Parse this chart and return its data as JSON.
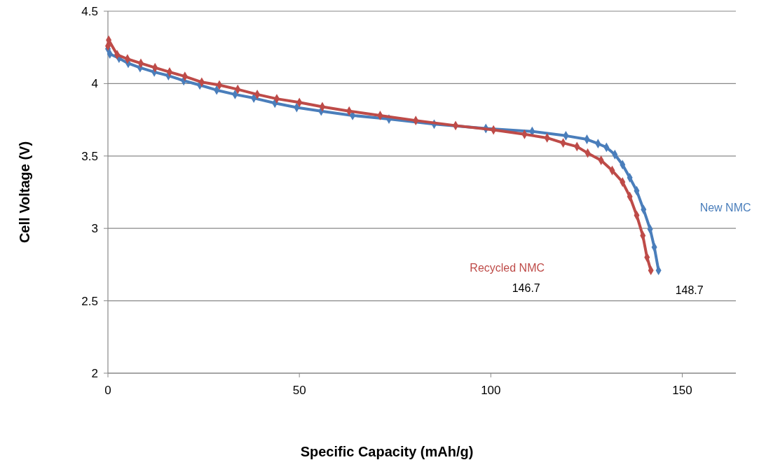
{
  "chart_data": {
    "type": "line",
    "xlabel": "Specific Capacity (mAh/g)",
    "ylabel": "Cell Voltage (V)",
    "xlim": [
      0,
      164
    ],
    "xticks": [
      0,
      50,
      100,
      150
    ],
    "ylim": [
      2,
      4.5
    ],
    "yticks": [
      2,
      2.5,
      3,
      3.5,
      4,
      4.5
    ],
    "grid": "y",
    "legend": false,
    "marker": "diamond",
    "line_style": "solid",
    "series": [
      {
        "name": "New NMC",
        "color": "#4a7ebb",
        "x": [
          0,
          0.5,
          2.9,
          5.3,
          8.4,
          12.1,
          15.8,
          19.8,
          24,
          28.4,
          33.2,
          38.1,
          43.6,
          49.3,
          55.7,
          63.9,
          73.4,
          85.2,
          98.7,
          110.8,
          119.6,
          125.1,
          128,
          130.2,
          132.4,
          134.4,
          136.3,
          138.1,
          139.9,
          141.6,
          142.7,
          143.8
        ],
        "values": [
          4.24,
          4.205,
          4.175,
          4.14,
          4.11,
          4.08,
          4.055,
          4.02,
          3.99,
          3.955,
          3.925,
          3.9,
          3.865,
          3.835,
          3.81,
          3.78,
          3.755,
          3.72,
          3.69,
          3.67,
          3.64,
          3.615,
          3.585,
          3.56,
          3.51,
          3.44,
          3.35,
          3.26,
          3.13,
          2.995,
          2.87,
          2.71
        ]
      },
      {
        "name": "Recycled NMC",
        "color": "#be4b48",
        "x": [
          0,
          0.2,
          2.4,
          5.1,
          8.6,
          12.3,
          16.1,
          20.1,
          24.5,
          29.1,
          33.9,
          39,
          44.1,
          50,
          56,
          63,
          71.1,
          80.4,
          90.8,
          100.7,
          108.8,
          114.7,
          118.9,
          122.5,
          125.3,
          128.8,
          131.7,
          134.4,
          136.3,
          138.1,
          139.7,
          140.8,
          141.8
        ],
        "values": [
          4.26,
          4.3,
          4.2,
          4.17,
          4.14,
          4.11,
          4.08,
          4.05,
          4.01,
          3.99,
          3.96,
          3.925,
          3.895,
          3.87,
          3.84,
          3.81,
          3.78,
          3.745,
          3.71,
          3.68,
          3.65,
          3.625,
          3.59,
          3.565,
          3.52,
          3.47,
          3.4,
          3.32,
          3.22,
          3.09,
          2.95,
          2.8,
          2.71
        ]
      }
    ],
    "annotations": [
      "148.7",
      "146.7"
    ]
  }
}
